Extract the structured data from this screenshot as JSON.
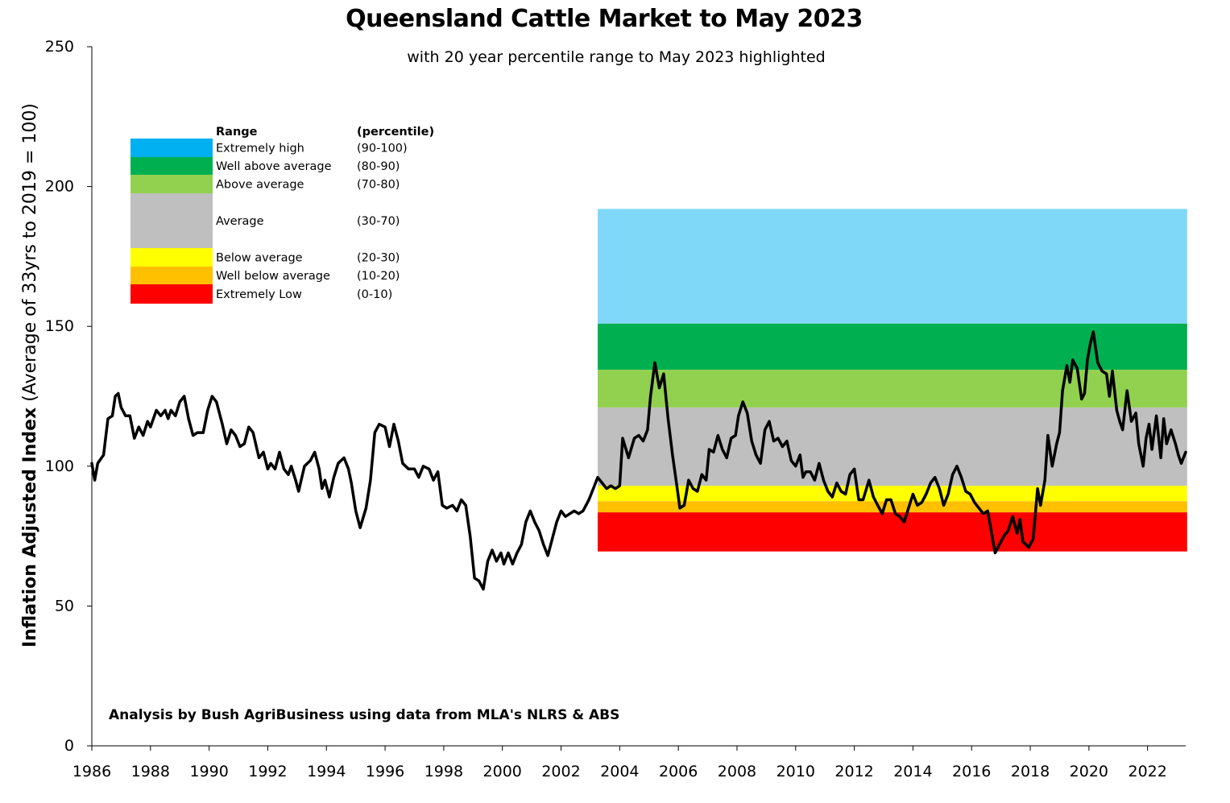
{
  "chart_data": {
    "type": "line",
    "title": "Queensland Cattle Market to May 2023",
    "subtitle": "with 20 year percentile range to May 2023 highlighted",
    "ylabel_bold": "Inflation Adjusted Index",
    "ylabel_rest": "(Average of 33yrs to 2019 = 100)",
    "xlabel": "",
    "ylim": [
      0,
      250
    ],
    "xlim": [
      1986,
      2023.3
    ],
    "yticks": [
      "0",
      "50",
      "100",
      "150",
      "200",
      "250"
    ],
    "xticks": [
      "1986",
      "1988",
      "1990",
      "1992",
      "1994",
      "1996",
      "1998",
      "2000",
      "2002",
      "2004",
      "2006",
      "2008",
      "2010",
      "2012",
      "2014",
      "2016",
      "2018",
      "2020",
      "2022"
    ],
    "grid": false,
    "legend": {
      "placement": "top-left",
      "header_range": "Range",
      "header_percentile": "(percentile)",
      "items": [
        {
          "label": "Extremely high",
          "percentile": "(90-100)",
          "color": "#00B0F0"
        },
        {
          "label": "Well above average",
          "percentile": "(80-90)",
          "color": "#00B050"
        },
        {
          "label": "Above average",
          "percentile": "(70-80)",
          "color": "#92D050"
        },
        {
          "label": "Average",
          "percentile": "(30-70)",
          "color": "#BFBFBF"
        },
        {
          "label": "Below average",
          "percentile": "(20-30)",
          "color": "#FFFF00"
        },
        {
          "label": "Well below average",
          "percentile": "(10-20)",
          "color": "#FFC000"
        },
        {
          "label": "Extremely Low",
          "percentile": "(0-10)",
          "color": "#FF0000"
        }
      ]
    },
    "percentile_bands": {
      "x_start": 2003.25,
      "x_end": 2023.35,
      "bands": [
        {
          "range": "(0-10)",
          "y0": 69.5,
          "y1": 83.5,
          "color": "#FF0000"
        },
        {
          "range": "(10-20)",
          "y0": 83.5,
          "y1": 87.5,
          "color": "#FFC000"
        },
        {
          "range": "(20-30)",
          "y0": 87.5,
          "y1": 93.0,
          "color": "#FFFF00"
        },
        {
          "range": "(30-70)",
          "y0": 93.0,
          "y1": 121.0,
          "color": "#BFBFBF"
        },
        {
          "range": "(70-80)",
          "y0": 121.0,
          "y1": 134.5,
          "color": "#92D050"
        },
        {
          "range": "(80-90)",
          "y0": 134.5,
          "y1": 151.0,
          "color": "#00B050"
        },
        {
          "range": "(90-100)",
          "y0": 151.0,
          "y1": 192.0,
          "color": "#80D8F8"
        }
      ]
    },
    "series": [
      {
        "color": "#000000",
        "points": [
          [
            1986.0,
            101
          ],
          [
            1986.1,
            95
          ],
          [
            1986.2,
            101
          ],
          [
            1986.4,
            104
          ],
          [
            1986.55,
            117
          ],
          [
            1986.7,
            118
          ],
          [
            1986.8,
            125
          ],
          [
            1986.9,
            126
          ],
          [
            1987.0,
            121
          ],
          [
            1987.15,
            118
          ],
          [
            1987.3,
            118
          ],
          [
            1987.45,
            110
          ],
          [
            1987.6,
            114
          ],
          [
            1987.75,
            111
          ],
          [
            1987.9,
            116
          ],
          [
            1988.0,
            114
          ],
          [
            1988.2,
            120
          ],
          [
            1988.35,
            118
          ],
          [
            1988.5,
            120
          ],
          [
            1988.6,
            117
          ],
          [
            1988.7,
            120
          ],
          [
            1988.85,
            118
          ],
          [
            1989.0,
            123
          ],
          [
            1989.15,
            125
          ],
          [
            1989.3,
            117
          ],
          [
            1989.45,
            111
          ],
          [
            1989.6,
            112
          ],
          [
            1989.8,
            112
          ],
          [
            1989.95,
            120
          ],
          [
            1990.1,
            125
          ],
          [
            1990.25,
            123
          ],
          [
            1990.45,
            115
          ],
          [
            1990.6,
            108
          ],
          [
            1990.75,
            113
          ],
          [
            1990.9,
            111
          ],
          [
            1991.05,
            107
          ],
          [
            1991.2,
            108
          ],
          [
            1991.35,
            114
          ],
          [
            1991.5,
            112
          ],
          [
            1991.7,
            103
          ],
          [
            1991.85,
            105
          ],
          [
            1992.0,
            99
          ],
          [
            1992.1,
            101
          ],
          [
            1992.25,
            99
          ],
          [
            1992.4,
            105
          ],
          [
            1992.55,
            99
          ],
          [
            1992.7,
            97
          ],
          [
            1992.8,
            100
          ],
          [
            1992.95,
            95
          ],
          [
            1993.05,
            91
          ],
          [
            1993.25,
            100
          ],
          [
            1993.45,
            102
          ],
          [
            1993.6,
            105
          ],
          [
            1993.75,
            99
          ],
          [
            1993.85,
            92
          ],
          [
            1993.95,
            95
          ],
          [
            1994.1,
            89
          ],
          [
            1994.25,
            96
          ],
          [
            1994.4,
            101
          ],
          [
            1994.6,
            103
          ],
          [
            1994.75,
            99
          ],
          [
            1994.85,
            94
          ],
          [
            1995.0,
            84
          ],
          [
            1995.15,
            78
          ],
          [
            1995.35,
            85
          ],
          [
            1995.5,
            95
          ],
          [
            1995.65,
            112
          ],
          [
            1995.8,
            115
          ],
          [
            1996.0,
            114
          ],
          [
            1996.15,
            107
          ],
          [
            1996.3,
            115
          ],
          [
            1996.45,
            109
          ],
          [
            1996.6,
            101
          ],
          [
            1996.8,
            99
          ],
          [
            1997.0,
            99
          ],
          [
            1997.15,
            96
          ],
          [
            1997.3,
            100
          ],
          [
            1997.5,
            99
          ],
          [
            1997.65,
            95
          ],
          [
            1997.8,
            98
          ],
          [
            1997.95,
            86
          ],
          [
            1998.1,
            85
          ],
          [
            1998.3,
            86
          ],
          [
            1998.45,
            84
          ],
          [
            1998.6,
            88
          ],
          [
            1998.75,
            86
          ],
          [
            1998.9,
            75
          ],
          [
            1999.05,
            60
          ],
          [
            1999.2,
            59
          ],
          [
            1999.35,
            56
          ],
          [
            1999.5,
            66
          ],
          [
            1999.65,
            70
          ],
          [
            1999.8,
            66
          ],
          [
            1999.95,
            69
          ],
          [
            2000.05,
            65
          ],
          [
            2000.2,
            69
          ],
          [
            2000.35,
            65
          ],
          [
            2000.5,
            69
          ],
          [
            2000.65,
            72
          ],
          [
            2000.8,
            80
          ],
          [
            2000.95,
            84
          ],
          [
            2001.1,
            80
          ],
          [
            2001.25,
            77
          ],
          [
            2001.4,
            72
          ],
          [
            2001.55,
            68
          ],
          [
            2001.7,
            74
          ],
          [
            2001.85,
            80
          ],
          [
            2002.0,
            84
          ],
          [
            2002.15,
            82
          ],
          [
            2002.3,
            83
          ],
          [
            2002.45,
            84
          ],
          [
            2002.6,
            83
          ],
          [
            2002.75,
            84
          ],
          [
            2002.95,
            88
          ],
          [
            2003.1,
            92
          ],
          [
            2003.25,
            96
          ],
          [
            2003.4,
            94
          ],
          [
            2003.55,
            92
          ],
          [
            2003.7,
            93
          ],
          [
            2003.85,
            92
          ],
          [
            2004.0,
            93
          ],
          [
            2004.1,
            110
          ],
          [
            2004.3,
            103
          ],
          [
            2004.5,
            110
          ],
          [
            2004.65,
            111
          ],
          [
            2004.8,
            109
          ],
          [
            2004.95,
            113
          ],
          [
            2005.05,
            125
          ],
          [
            2005.2,
            137
          ],
          [
            2005.35,
            128
          ],
          [
            2005.5,
            133
          ],
          [
            2005.65,
            117
          ],
          [
            2005.8,
            104
          ],
          [
            2005.95,
            93
          ],
          [
            2006.05,
            85
          ],
          [
            2006.2,
            86
          ],
          [
            2006.35,
            95
          ],
          [
            2006.5,
            92
          ],
          [
            2006.65,
            91
          ],
          [
            2006.8,
            97
          ],
          [
            2006.95,
            95
          ],
          [
            2007.05,
            106
          ],
          [
            2007.2,
            105
          ],
          [
            2007.35,
            111
          ],
          [
            2007.5,
            106
          ],
          [
            2007.65,
            103
          ],
          [
            2007.8,
            110
          ],
          [
            2007.95,
            111
          ],
          [
            2008.05,
            118
          ],
          [
            2008.2,
            123
          ],
          [
            2008.35,
            119
          ],
          [
            2008.5,
            109
          ],
          [
            2008.65,
            104
          ],
          [
            2008.8,
            101
          ],
          [
            2008.95,
            113
          ],
          [
            2009.1,
            116
          ],
          [
            2009.25,
            109
          ],
          [
            2009.4,
            110
          ],
          [
            2009.55,
            107
          ],
          [
            2009.7,
            109
          ],
          [
            2009.85,
            102
          ],
          [
            2010.0,
            100
          ],
          [
            2010.15,
            104
          ],
          [
            2010.25,
            96
          ],
          [
            2010.35,
            98
          ],
          [
            2010.5,
            98
          ],
          [
            2010.65,
            95
          ],
          [
            2010.8,
            101
          ],
          [
            2010.95,
            95
          ],
          [
            2011.1,
            91
          ],
          [
            2011.25,
            89
          ],
          [
            2011.4,
            94
          ],
          [
            2011.55,
            91
          ],
          [
            2011.7,
            90
          ],
          [
            2011.85,
            97
          ],
          [
            2012.0,
            99
          ],
          [
            2012.15,
            88
          ],
          [
            2012.3,
            88
          ],
          [
            2012.5,
            95
          ],
          [
            2012.65,
            89
          ],
          [
            2012.8,
            86
          ],
          [
            2012.95,
            83
          ],
          [
            2013.1,
            88
          ],
          [
            2013.25,
            88
          ],
          [
            2013.4,
            83
          ],
          [
            2013.55,
            82
          ],
          [
            2013.7,
            80
          ],
          [
            2013.85,
            85
          ],
          [
            2014.0,
            90
          ],
          [
            2014.15,
            86
          ],
          [
            2014.3,
            87
          ],
          [
            2014.45,
            90
          ],
          [
            2014.6,
            94
          ],
          [
            2014.75,
            96
          ],
          [
            2014.9,
            92
          ],
          [
            2015.05,
            86
          ],
          [
            2015.2,
            90
          ],
          [
            2015.35,
            97
          ],
          [
            2015.5,
            100
          ],
          [
            2015.65,
            96
          ],
          [
            2015.8,
            91
          ],
          [
            2015.95,
            90
          ],
          [
            2016.1,
            87
          ],
          [
            2016.25,
            85
          ],
          [
            2016.4,
            83
          ],
          [
            2016.55,
            84
          ],
          [
            2016.65,
            78
          ],
          [
            2016.8,
            69
          ],
          [
            2016.95,
            72
          ],
          [
            2017.1,
            75
          ],
          [
            2017.25,
            77
          ],
          [
            2017.4,
            82
          ],
          [
            2017.55,
            76
          ],
          [
            2017.65,
            81
          ],
          [
            2017.75,
            73
          ],
          [
            2017.95,
            71
          ],
          [
            2018.1,
            74
          ],
          [
            2018.25,
            92
          ],
          [
            2018.35,
            86
          ],
          [
            2018.5,
            95
          ],
          [
            2018.6,
            111
          ],
          [
            2018.75,
            100
          ],
          [
            2018.9,
            108
          ],
          [
            2019.0,
            112
          ],
          [
            2019.1,
            127
          ],
          [
            2019.25,
            136
          ],
          [
            2019.35,
            130
          ],
          [
            2019.45,
            138
          ],
          [
            2019.6,
            135
          ],
          [
            2019.75,
            124
          ],
          [
            2019.85,
            126
          ],
          [
            2019.95,
            138
          ],
          [
            2020.05,
            144
          ],
          [
            2020.15,
            148
          ],
          [
            2020.3,
            137
          ],
          [
            2020.45,
            134
          ],
          [
            2020.6,
            133
          ],
          [
            2020.7,
            125
          ],
          [
            2020.8,
            134
          ],
          [
            2020.95,
            120
          ],
          [
            2021.05,
            116
          ],
          [
            2021.15,
            113
          ],
          [
            2021.3,
            127
          ],
          [
            2021.45,
            116
          ],
          [
            2021.6,
            119
          ],
          [
            2021.7,
            108
          ],
          [
            2021.85,
            100
          ],
          [
            2021.95,
            110
          ],
          [
            2022.05,
            115
          ],
          [
            2022.15,
            106
          ],
          [
            2022.3,
            118
          ],
          [
            2022.45,
            103
          ],
          [
            2022.55,
            117
          ],
          [
            2022.65,
            108
          ],
          [
            2022.8,
            113
          ],
          [
            2022.95,
            108
          ],
          [
            2023.05,
            104
          ],
          [
            2023.15,
            101
          ],
          [
            2023.3,
            105
          ]
        ]
      }
    ]
  },
  "source_note": "Analysis by Bush AgriBusiness using data from MLA's NLRS & ABS"
}
